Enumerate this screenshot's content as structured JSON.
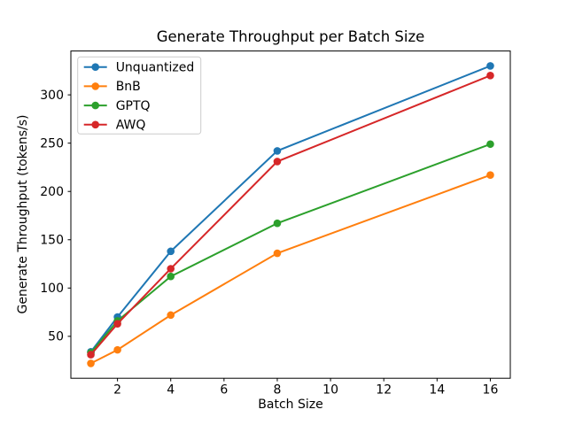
{
  "chart_data": {
    "type": "line",
    "title": "Generate Throughput per Batch Size",
    "xlabel": "Batch Size",
    "ylabel": "Generate Throughput (tokens/s)",
    "x": [
      1,
      2,
      4,
      8,
      16
    ],
    "series": [
      {
        "name": "Unquantized",
        "color": "#1f77b4",
        "values": [
          34,
          70,
          138,
          242,
          330
        ]
      },
      {
        "name": "BnB",
        "color": "#ff7f0e",
        "values": [
          22,
          36,
          72,
          136,
          217
        ]
      },
      {
        "name": "GPTQ",
        "color": "#2ca02c",
        "values": [
          33,
          66,
          112,
          167,
          249
        ]
      },
      {
        "name": "AWQ",
        "color": "#d62728",
        "values": [
          31,
          63,
          120,
          231,
          320
        ]
      }
    ],
    "x_ticks": [
      2,
      4,
      6,
      8,
      10,
      12,
      14,
      16
    ],
    "y_ticks": [
      50,
      100,
      150,
      200,
      250,
      300
    ],
    "xlim": [
      0.25,
      16.75
    ],
    "ylim": [
      6.6,
      345.4
    ],
    "grid": false,
    "marker": "circle",
    "legend": {
      "position": "upper-left",
      "entries": [
        "Unquantized",
        "BnB",
        "GPTQ",
        "AWQ"
      ]
    },
    "colors": {
      "axis": "#000000",
      "legend_border": "#cccccc",
      "background": "#ffffff"
    }
  }
}
